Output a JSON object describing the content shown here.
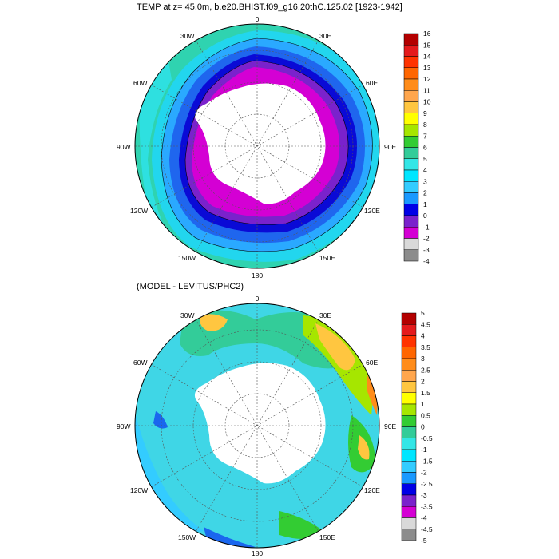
{
  "panels": [
    {
      "id": "temp",
      "title": "TEMP at z=  45.0m, b.e20.BHIST.f09_g16.20thC.125.02 [1923-1942]",
      "longitude_labels": [
        "0",
        "30E",
        "60E",
        "90E",
        "120E",
        "150E",
        "180",
        "150W",
        "120W",
        "90W",
        "60W",
        "30W"
      ],
      "colorbar": {
        "labels": [
          "16",
          "15",
          "14",
          "13",
          "12",
          "11",
          "10",
          "9",
          "8",
          "7",
          "6",
          "5",
          "4",
          "3",
          "2",
          "1",
          "0",
          "-1",
          "-2",
          "-3",
          "-4"
        ],
        "colors": [
          "#b30000",
          "#e41a1c",
          "#ff3300",
          "#ff6600",
          "#ff8c1a",
          "#ffa64d",
          "#ffc640",
          "#ffff00",
          "#a6e600",
          "#33cc33",
          "#33cc99",
          "#33e6e6",
          "#00e6ff",
          "#33ccff",
          "#1a99ff",
          "#0000e6",
          "#7a22cc",
          "#d400d4",
          "#d9d9d9",
          "#8c8c8c"
        ]
      }
    },
    {
      "id": "diff",
      "title": "(MODEL - LEVITUS/PHC2)",
      "longitude_labels": [
        "0",
        "30E",
        "60E",
        "90E",
        "120E",
        "150E",
        "180",
        "150W",
        "120W",
        "90W",
        "60W",
        "30W"
      ],
      "colorbar": {
        "labels": [
          "5",
          "4.5",
          "4",
          "3.5",
          "3",
          "2.5",
          "2",
          "1.5",
          "1",
          "0.5",
          "0",
          "-0.5",
          "-1",
          "-1.5",
          "-2",
          "-2.5",
          "-3",
          "-3.5",
          "-4",
          "-4.5",
          "-5"
        ],
        "colors": [
          "#b30000",
          "#e41a1c",
          "#ff3300",
          "#ff6600",
          "#ff8c1a",
          "#ffa64d",
          "#ffc640",
          "#ffff00",
          "#a6e600",
          "#33cc33",
          "#33cc99",
          "#33e6e6",
          "#00e6ff",
          "#33ccff",
          "#1a99ff",
          "#0000e6",
          "#7a22cc",
          "#d400d4",
          "#d9d9d9",
          "#8c8c8c"
        ]
      }
    }
  ]
}
